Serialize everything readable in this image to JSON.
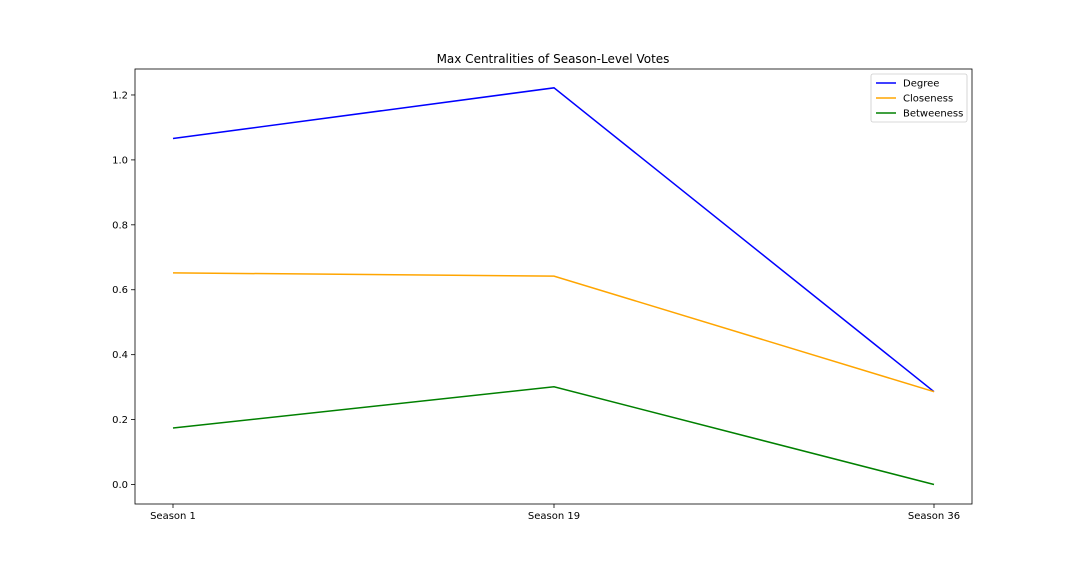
{
  "chart_data": {
    "type": "line",
    "title": "Max Centralities of Season-Level Votes",
    "xlabel": "",
    "ylabel": "",
    "categories": [
      "Season 1",
      "Season 19",
      "Season 36"
    ],
    "ylim": [
      -0.06,
      1.28
    ],
    "yticks": [
      0.0,
      0.2,
      0.4,
      0.6,
      0.8,
      1.0,
      1.2
    ],
    "ytick_labels": [
      "0.0",
      "0.2",
      "0.4",
      "0.6",
      "0.8",
      "1.0",
      "1.2"
    ],
    "grid": false,
    "legend_position": "top-right",
    "series": [
      {
        "name": "Degree",
        "color": "#0000ff",
        "values": [
          1.066,
          1.222,
          0.286
        ]
      },
      {
        "name": "Closeness",
        "color": "#ffa500",
        "values": [
          0.652,
          0.642,
          0.286
        ]
      },
      {
        "name": "Betweeness",
        "color": "#008000",
        "values": [
          0.174,
          0.301,
          0.0
        ]
      }
    ]
  }
}
